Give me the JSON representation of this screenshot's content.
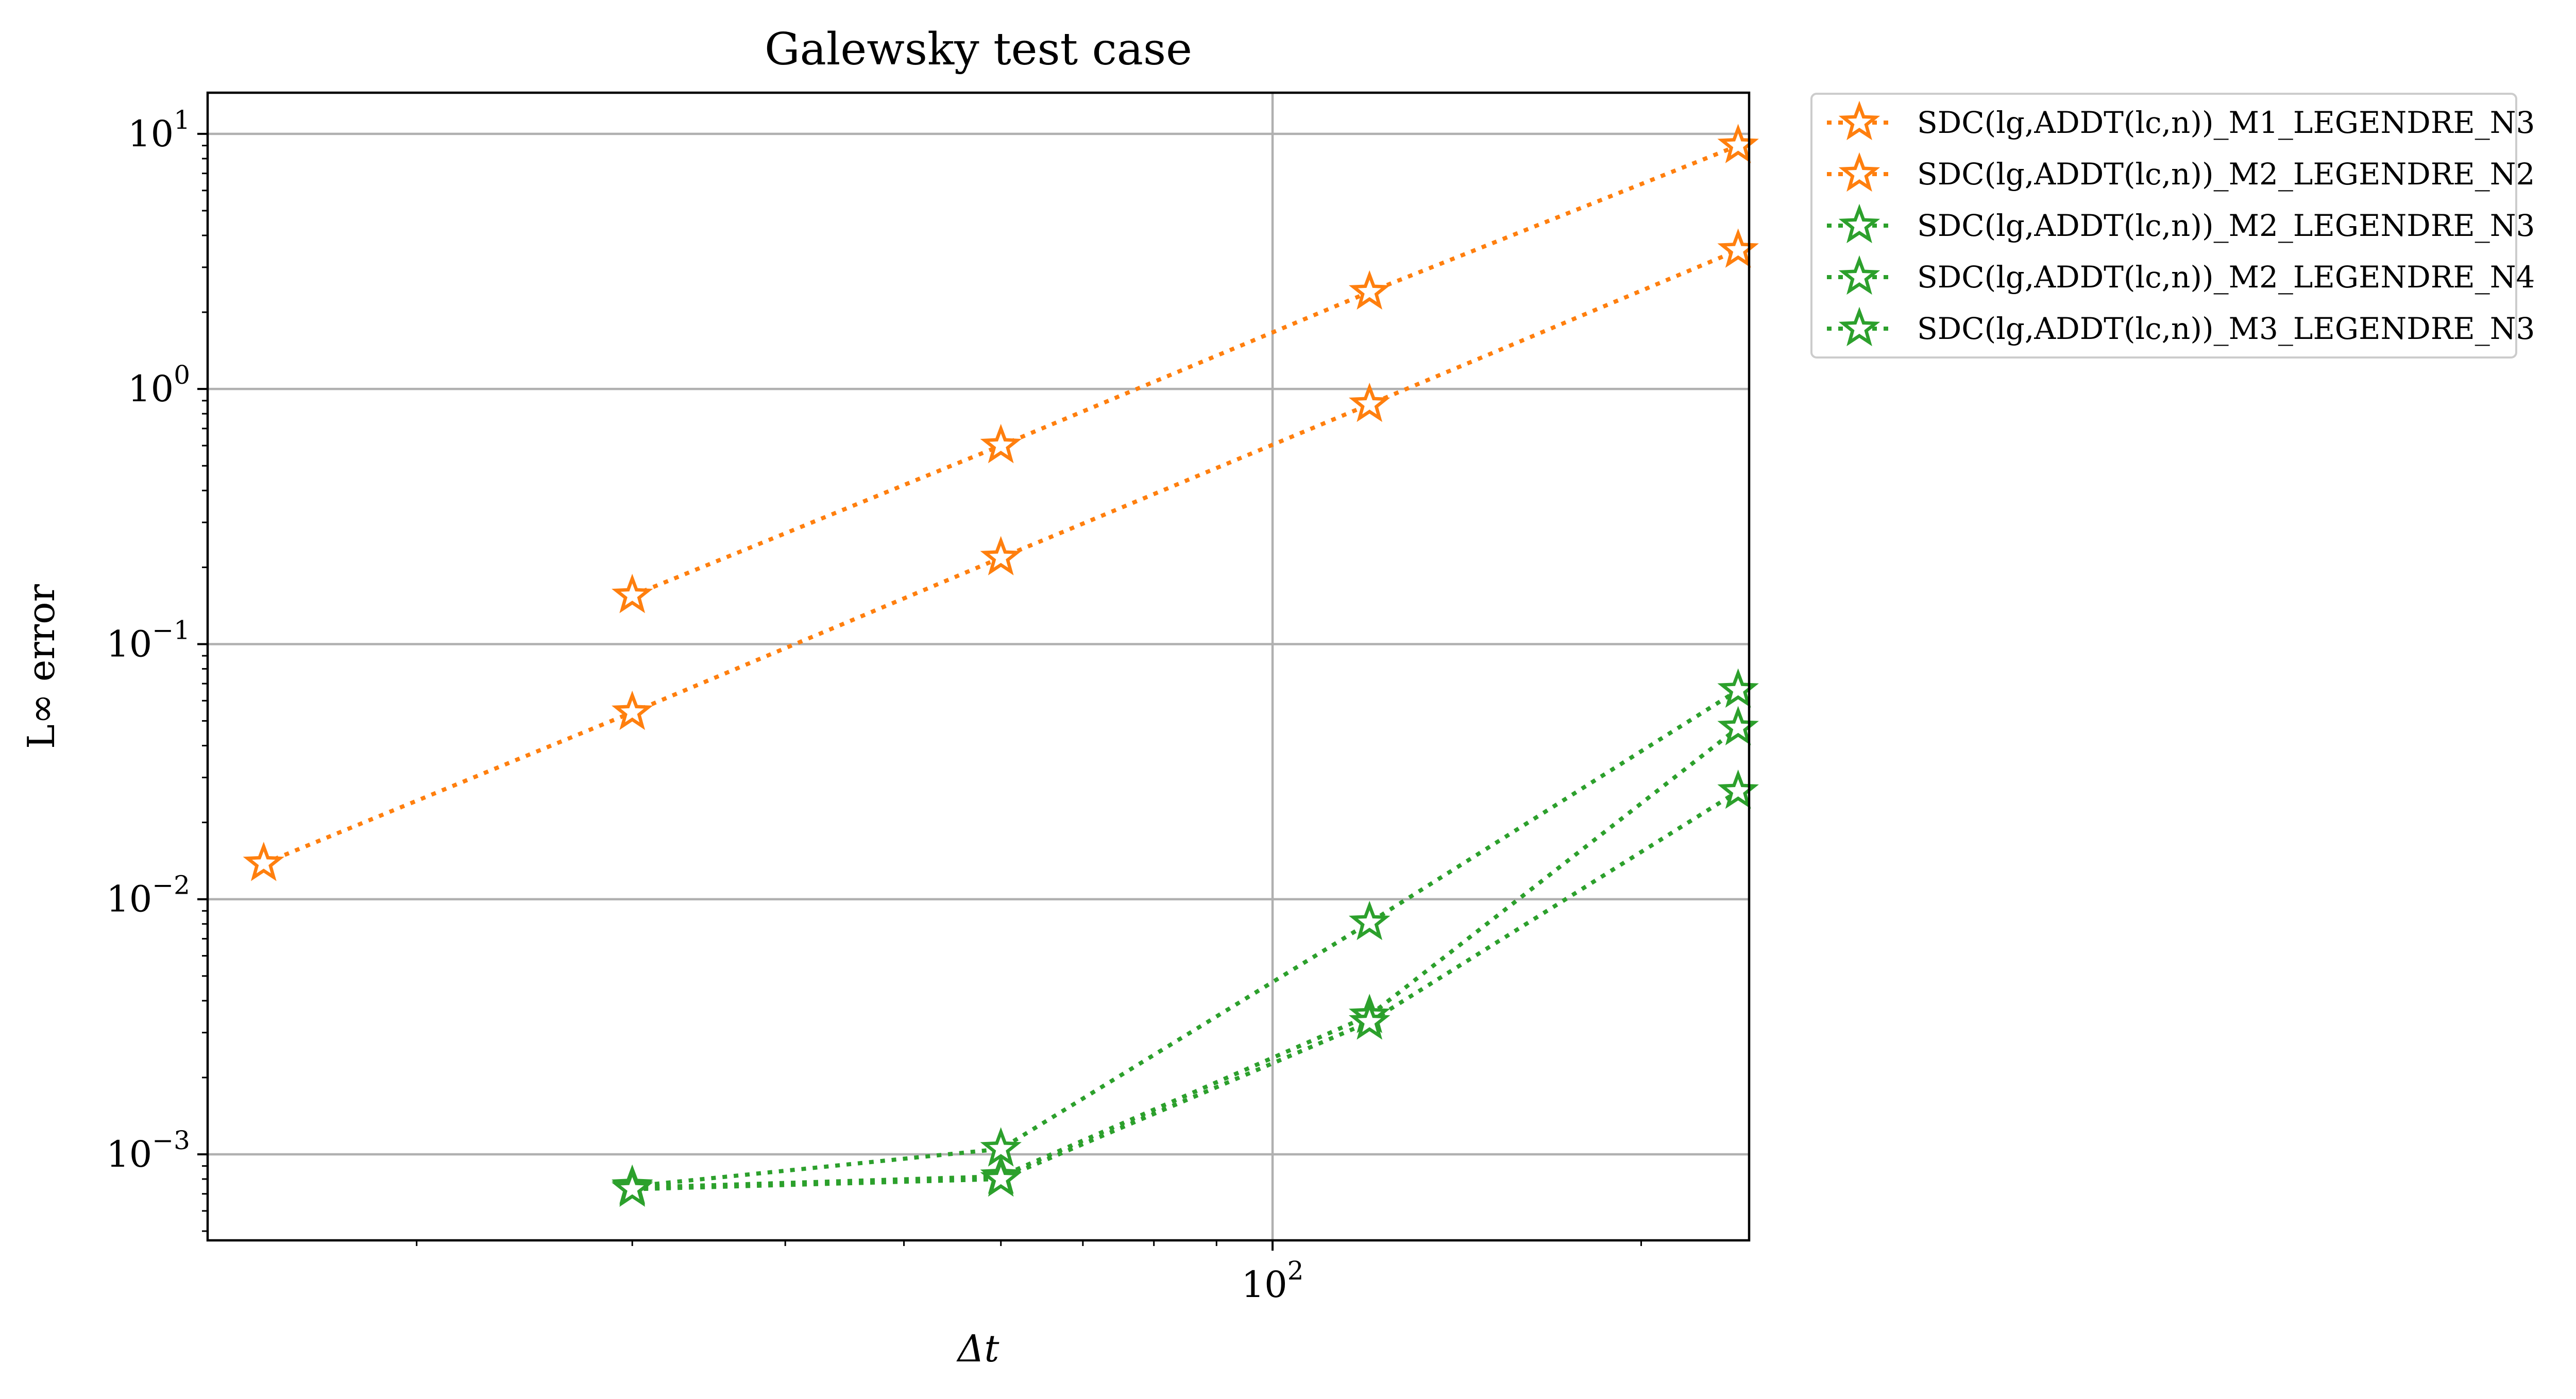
{
  "chart_data": {
    "type": "line",
    "title": "Galewsky test case",
    "xlabel": "Δt",
    "ylabel": "L∞ error",
    "xscale": "log",
    "yscale": "log",
    "xlim": [
      13.5,
      245
    ],
    "ylim": [
      0.00046,
      14.5
    ],
    "grid": true,
    "legend_position": "outside upper right",
    "x_ticks": [
      {
        "value": 100,
        "base": "10",
        "exp": "2"
      }
    ],
    "y_ticks": [
      {
        "value": 10,
        "base": "10",
        "exp": "1"
      },
      {
        "value": 1,
        "base": "10",
        "exp": "0"
      },
      {
        "value": 0.1,
        "base": "10",
        "exp": "−1"
      },
      {
        "value": 0.01,
        "base": "10",
        "exp": "−2"
      },
      {
        "value": 0.001,
        "base": "10",
        "exp": "−3"
      }
    ],
    "x_minor_ticks": [
      20,
      30,
      40,
      50,
      60,
      70,
      80,
      90,
      200
    ],
    "marker": "star-open",
    "line_style": "dotted",
    "series": [
      {
        "name": "SDC(lg,ADDT(lc,n))_M1_LEGENDRE_N3",
        "color": "#ff7f0e",
        "x": [
          30,
          60,
          120,
          240
        ],
        "y": [
          0.155,
          0.6,
          2.4,
          9.0
        ]
      },
      {
        "name": "SDC(lg,ADDT(lc,n))_M2_LEGENDRE_N2",
        "color": "#ff7f0e",
        "x": [
          15,
          30,
          60,
          120,
          240
        ],
        "y": [
          0.0138,
          0.054,
          0.218,
          0.87,
          3.5
        ]
      },
      {
        "name": "SDC(lg,ADDT(lc,n))_M2_LEGENDRE_N3",
        "color": "#2ca02c",
        "x": [
          30,
          60,
          120,
          240
        ],
        "y": [
          0.00074,
          0.00082,
          0.0035,
          0.047
        ]
      },
      {
        "name": "SDC(lg,ADDT(lc,n))_M2_LEGENDRE_N4",
        "color": "#2ca02c",
        "x": [
          30,
          60,
          120,
          240
        ],
        "y": [
          0.00075,
          0.00105,
          0.0081,
          0.066
        ]
      },
      {
        "name": "SDC(lg,ADDT(lc,n))_M3_LEGENDRE_N3",
        "color": "#2ca02c",
        "x": [
          30,
          60,
          120,
          240
        ],
        "y": [
          0.00073,
          0.0008,
          0.0033,
          0.0265
        ]
      }
    ]
  }
}
